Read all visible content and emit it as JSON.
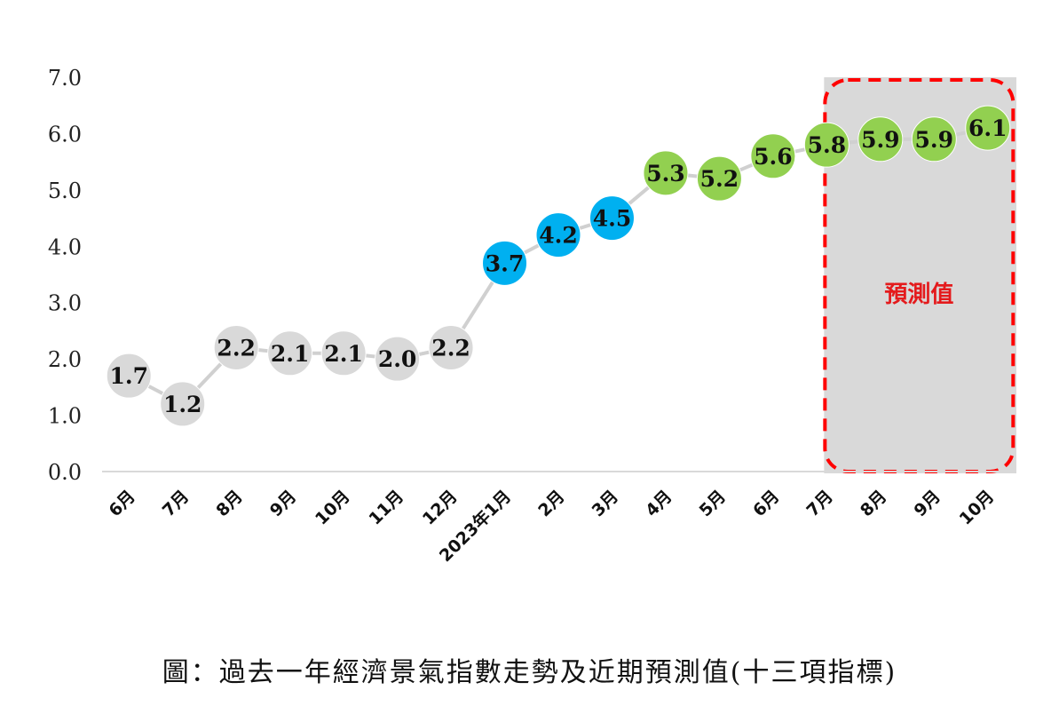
{
  "caption": "圖：過去一年經濟景氣指數走勢及近期預測值(十三項指標)",
  "chart_data": {
    "type": "line",
    "categories": [
      "6月",
      "7月",
      "8月",
      "9月",
      "10月",
      "11月",
      "12月",
      "2023年1月",
      "2月",
      "3月",
      "4月",
      "5月",
      "6月",
      "7月",
      "8月",
      "9月",
      "10月"
    ],
    "values": [
      1.7,
      1.2,
      2.2,
      2.1,
      2.1,
      2.0,
      2.2,
      3.7,
      4.2,
      4.5,
      5.3,
      5.2,
      5.6,
      5.8,
      5.9,
      5.9,
      6.1
    ],
    "value_labels": [
      "1.7",
      "1.2",
      "2.2",
      "2.1",
      "2.1",
      "2.0",
      "2.2",
      "3.7",
      "4.2",
      "4.5",
      "5.3",
      "5.2",
      "5.6",
      "5.8",
      "5.9",
      "5.9",
      "6.1"
    ],
    "point_colors": [
      "#d9d9d9",
      "#d9d9d9",
      "#d9d9d9",
      "#d9d9d9",
      "#d9d9d9",
      "#d9d9d9",
      "#d9d9d9",
      "#00b0f0",
      "#00b0f0",
      "#00b0f0",
      "#92d050",
      "#92d050",
      "#92d050",
      "#92d050",
      "#92d050",
      "#92d050",
      "#92d050"
    ],
    "ylim": [
      0,
      7
    ],
    "yticks": [
      "0.0",
      "1.0",
      "2.0",
      "3.0",
      "4.0",
      "5.0",
      "6.0",
      "7.0"
    ],
    "forecast_region": {
      "from_category": "7月",
      "to_category": "10月",
      "label": "預測值",
      "label_color": "#e41a1c",
      "fill": "#d9d9d9",
      "border": "#ff0000"
    },
    "line_color": "#d0d0d0",
    "grid": false
  }
}
